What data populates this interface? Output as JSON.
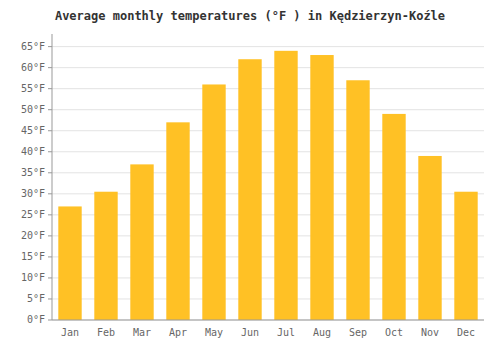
{
  "chart_data": {
    "type": "bar",
    "title": "Average monthly temperatures (°F ) in Kędzierzyn-Koźle",
    "categories": [
      "Jan",
      "Feb",
      "Mar",
      "Apr",
      "May",
      "Jun",
      "Jul",
      "Aug",
      "Sep",
      "Oct",
      "Nov",
      "Dec"
    ],
    "values": [
      27,
      30.5,
      37,
      47,
      56,
      62,
      64,
      63,
      57,
      49,
      39,
      30.5
    ],
    "color": "#FFC125",
    "ylim": [
      0,
      68
    ],
    "yticks": [
      {
        "value": 0,
        "label": "0°F"
      },
      {
        "value": 5,
        "label": "5°F"
      },
      {
        "value": 10,
        "label": "10°F"
      },
      {
        "value": 15,
        "label": "15°F"
      },
      {
        "value": 20,
        "label": "20°F"
      },
      {
        "value": 25,
        "label": "25°F"
      },
      {
        "value": 30,
        "label": "30°F"
      },
      {
        "value": 35,
        "label": "35°F"
      },
      {
        "value": 40,
        "label": "40°F"
      },
      {
        "value": 45,
        "label": "45°F"
      },
      {
        "value": 50,
        "label": "50°F"
      },
      {
        "value": 55,
        "label": "55°F"
      },
      {
        "value": 60,
        "label": "60°F"
      },
      {
        "value": 65,
        "label": "65°F"
      }
    ],
    "grid": true
  }
}
